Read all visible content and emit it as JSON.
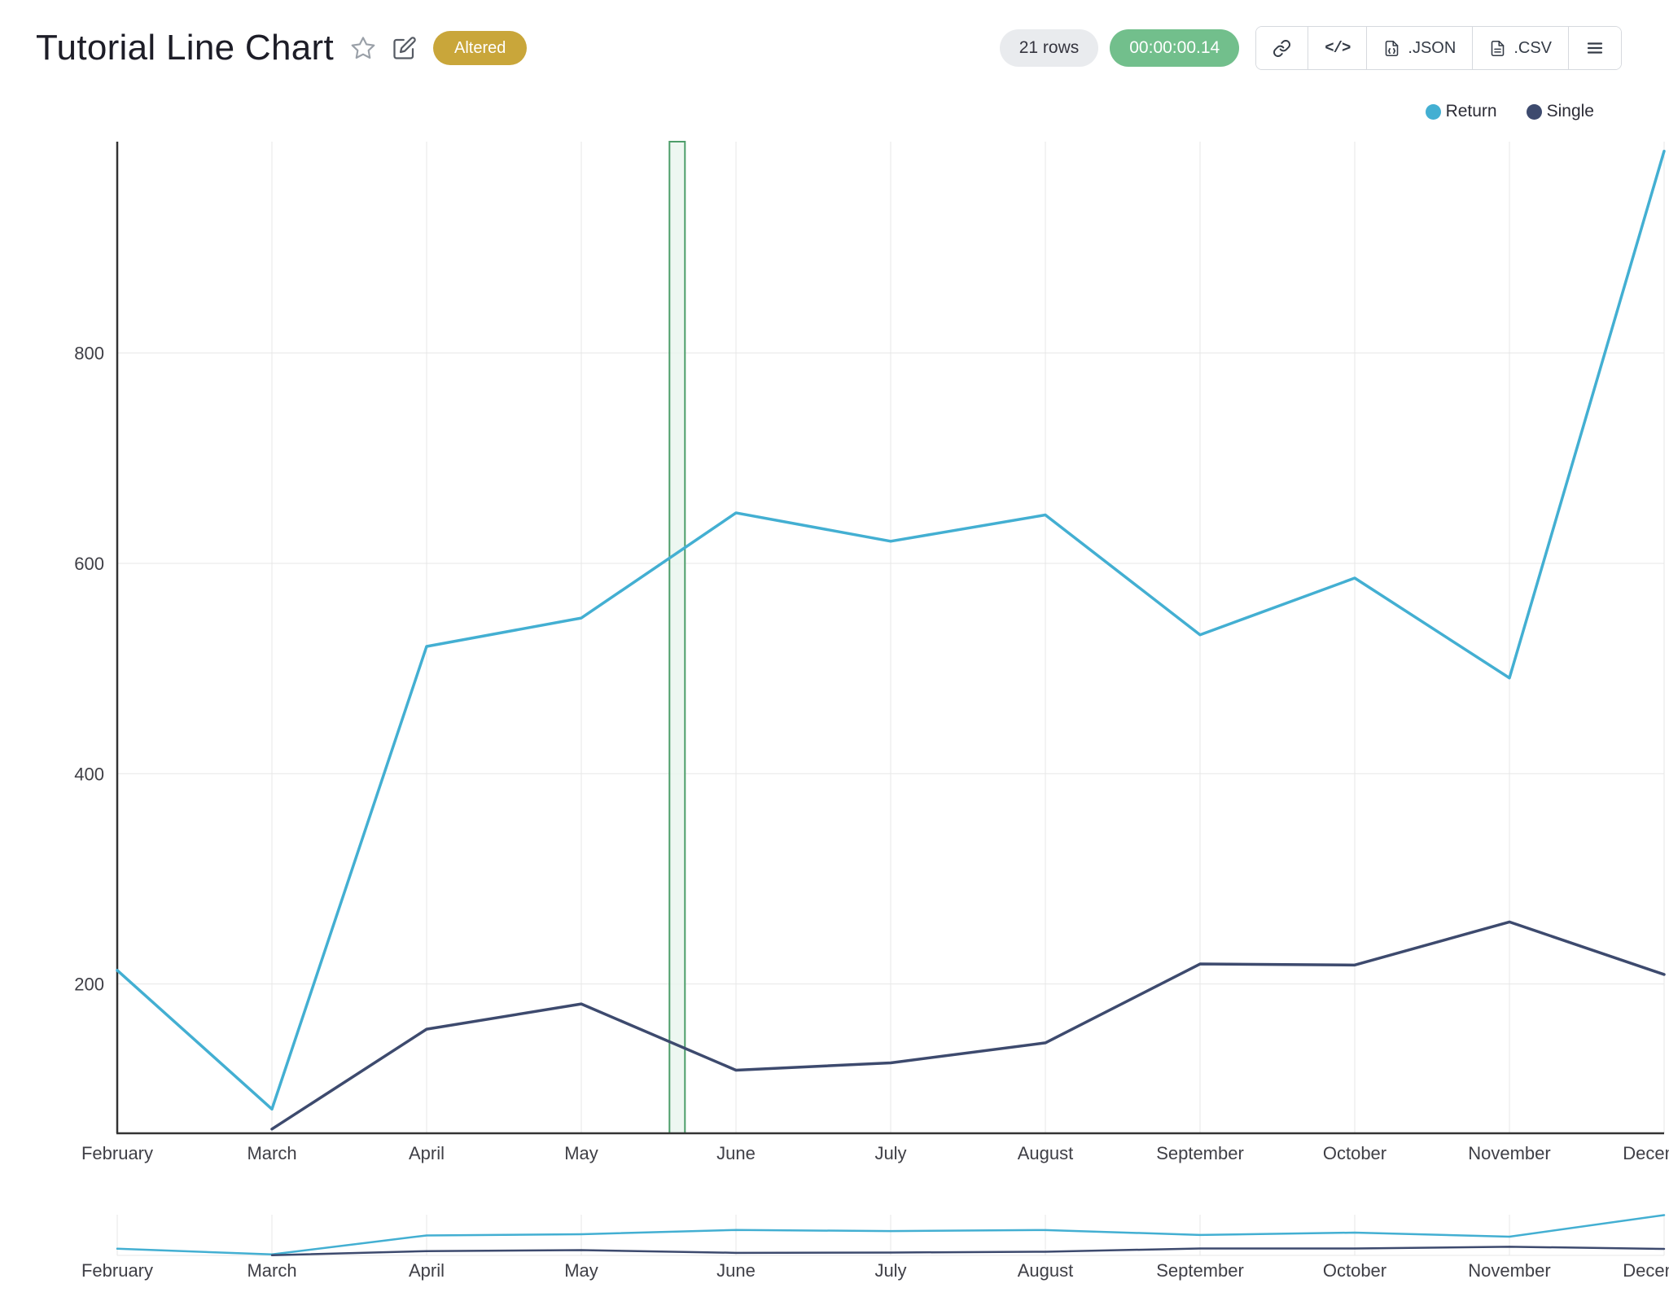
{
  "header": {
    "title": "Tutorial Line Chart",
    "altered_badge": "Altered",
    "rows_badge": "21 rows",
    "runtime_badge": "00:00:00.14",
    "buttons": {
      "embed_label": "</>",
      "json_label": ".JSON",
      "csv_label": ".CSV"
    },
    "colors": {
      "altered": "#c9a63a",
      "runtime": "#72bf8c",
      "rows": "#e9ebee"
    }
  },
  "legend": {
    "items": [
      {
        "label": "Return",
        "color": "#43afd2"
      },
      {
        "label": "Single",
        "color": "#3d4a6e"
      }
    ]
  },
  "chart_data": {
    "type": "line",
    "title": "Tutorial Line Chart",
    "categories": [
      "February",
      "March",
      "April",
      "May",
      "June",
      "July",
      "August",
      "September",
      "October",
      "November",
      "December"
    ],
    "series": [
      {
        "name": "Return",
        "color": "#43afd2",
        "values": [
          213,
          81,
          521,
          548,
          648,
          621,
          646,
          532,
          586,
          491,
          992
        ]
      },
      {
        "name": "Single",
        "color": "#3d4a6e",
        "values": [
          null,
          62,
          157,
          181,
          118,
          125,
          144,
          219,
          218,
          259,
          209
        ]
      }
    ],
    "yticks": [
      200,
      400,
      600,
      800
    ],
    "ylim": [
      58,
      1001
    ],
    "grid": true,
    "legend_position": "top-right",
    "highlight_band": {
      "start_index": 3.57,
      "end_index": 3.67,
      "stroke": "#4d9e6a",
      "fill": "#e8f5ed"
    },
    "colors": {
      "grid": "#e7e7e7",
      "axis": "#333333",
      "tick_text": "#3f3f46"
    }
  }
}
